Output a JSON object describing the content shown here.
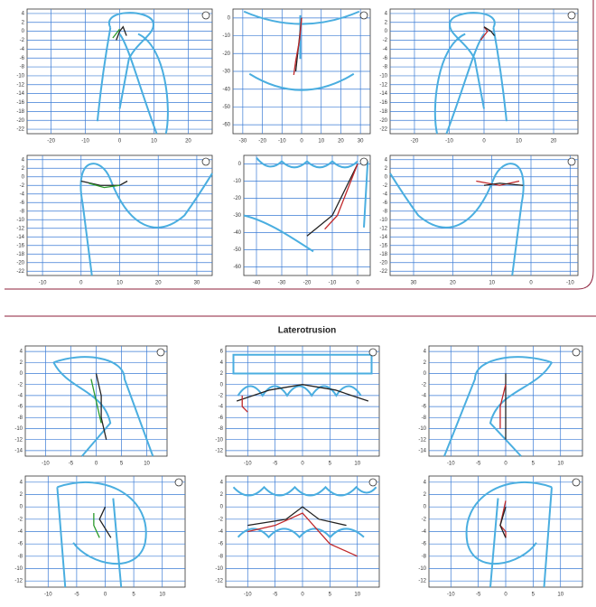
{
  "title": "Laterotrusion",
  "chart_data": [
    {
      "type": "line",
      "xlim": [
        -27,
        27
      ],
      "ylim": [
        -23,
        5
      ],
      "xticks": [
        -20,
        -10,
        0,
        10,
        20
      ],
      "yticks": [
        4,
        2,
        0,
        -2,
        -4,
        -6,
        -8,
        -10,
        -12,
        -14,
        -16,
        -18,
        -20,
        -22
      ],
      "series": [
        {
          "color": "#222222",
          "x": [
            -1,
            0,
            1,
            2
          ],
          "values": [
            -2,
            0,
            1,
            -1
          ]
        },
        {
          "color": "#2a9a2a",
          "x": [
            -2,
            -1,
            0
          ],
          "values": [
            -1.5,
            -0.5,
            0.5
          ]
        }
      ]
    },
    {
      "type": "line",
      "xlim": [
        -35,
        35
      ],
      "ylim": [
        -65,
        5
      ],
      "xticks": [
        -30,
        -20,
        -10,
        0,
        10,
        20,
        30
      ],
      "yticks": [
        0,
        -10,
        -20,
        -30,
        -40,
        -50,
        -60
      ],
      "series": [
        {
          "color": "#222222",
          "x": [
            0,
            -1,
            -2,
            -3
          ],
          "values": [
            0,
            -10,
            -20,
            -30
          ]
        },
        {
          "color": "#c0282a",
          "x": [
            0,
            -1,
            -3,
            -4
          ],
          "values": [
            0,
            -12,
            -24,
            -32
          ]
        }
      ]
    },
    {
      "type": "line",
      "xlim": [
        -27,
        27
      ],
      "ylim": [
        -23,
        5
      ],
      "xticks": [
        -20,
        -10,
        0,
        10,
        20
      ],
      "yticks": [
        4,
        2,
        0,
        -2,
        -4,
        -6,
        -8,
        -10,
        -12,
        -14,
        -16,
        -18,
        -20,
        -22
      ],
      "series": [
        {
          "color": "#c0282a",
          "x": [
            -1,
            1,
            0
          ],
          "values": [
            -2,
            0,
            1
          ]
        },
        {
          "color": "#222222",
          "x": [
            0,
            2,
            3
          ],
          "values": [
            1,
            0,
            -1
          ]
        }
      ]
    },
    {
      "type": "line",
      "xlim": [
        -14,
        34
      ],
      "ylim": [
        -23,
        5
      ],
      "xticks": [
        -10,
        0,
        10,
        20,
        30
      ],
      "yticks": [
        4,
        2,
        0,
        -2,
        -4,
        -6,
        -8,
        -10,
        -12,
        -14,
        -16,
        -18,
        -20,
        -22
      ],
      "series": [
        {
          "color": "#222222",
          "x": [
            0,
            5,
            10,
            12
          ],
          "values": [
            -1,
            -2,
            -2,
            -1
          ]
        },
        {
          "color": "#2a9a2a",
          "x": [
            2,
            6,
            10
          ],
          "values": [
            -1.5,
            -2.5,
            -2
          ]
        }
      ]
    },
    {
      "type": "line",
      "xlim": [
        -45,
        5
      ],
      "ylim": [
        -65,
        5
      ],
      "xticks": [
        -40,
        -30,
        -20,
        -10,
        0
      ],
      "yticks": [
        0,
        -10,
        -20,
        -30,
        -40,
        -50,
        -60
      ],
      "series": [
        {
          "color": "#222222",
          "x": [
            0,
            -5,
            -10,
            -20
          ],
          "values": [
            0,
            -15,
            -30,
            -42
          ]
        },
        {
          "color": "#c0282a",
          "x": [
            0,
            -4,
            -8,
            -13
          ],
          "values": [
            0,
            -15,
            -30,
            -38
          ]
        }
      ]
    },
    {
      "type": "line",
      "xlim": [
        36,
        -12
      ],
      "ylim": [
        -23,
        5
      ],
      "xticks": [
        30,
        20,
        10,
        0,
        -10
      ],
      "yticks": [
        4,
        2,
        0,
        -2,
        -4,
        -6,
        -8,
        -10,
        -12,
        -14,
        -16,
        -18,
        -20,
        -22
      ],
      "series": [
        {
          "color": "#c0282a",
          "x": [
            14,
            8,
            3
          ],
          "values": [
            -1,
            -2,
            -1
          ]
        },
        {
          "color": "#222222",
          "x": [
            12,
            8,
            2
          ],
          "values": [
            -2,
            -1.5,
            -2
          ]
        }
      ]
    },
    {
      "type": "line",
      "xlim": [
        -14,
        14
      ],
      "ylim": [
        -15,
        5
      ],
      "xticks": [
        -10,
        -5,
        0,
        5,
        10
      ],
      "yticks": [
        4,
        2,
        0,
        -2,
        -4,
        -6,
        -8,
        -10,
        -12,
        -14
      ],
      "series": [
        {
          "color": "#222222",
          "x": [
            0,
            1,
            1,
            2
          ],
          "values": [
            0,
            -4,
            -8,
            -12
          ]
        },
        {
          "color": "#2a9a2a",
          "x": [
            -1,
            0,
            1
          ],
          "values": [
            -1,
            -5,
            -9
          ]
        }
      ]
    },
    {
      "type": "line",
      "xlim": [
        -14,
        14
      ],
      "ylim": [
        -13,
        7
      ],
      "xticks": [
        -10,
        -5,
        0,
        5,
        10
      ],
      "yticks": [
        6,
        4,
        2,
        0,
        -2,
        -4,
        -6,
        -8,
        -10,
        -12
      ],
      "series": [
        {
          "color": "#222222",
          "x": [
            -12,
            -6,
            0,
            6,
            12
          ],
          "values": [
            -3,
            -1,
            0,
            -1,
            -3
          ]
        },
        {
          "color": "#c0282a",
          "x": [
            -11,
            -11,
            -10
          ],
          "values": [
            -2,
            -4,
            -5
          ]
        }
      ]
    },
    {
      "type": "line",
      "xlim": [
        -14,
        14
      ],
      "ylim": [
        -15,
        5
      ],
      "xticks": [
        -10,
        -5,
        0,
        5,
        10
      ],
      "yticks": [
        4,
        2,
        0,
        -2,
        -4,
        -6,
        -8,
        -10,
        -12,
        -14
      ],
      "series": [
        {
          "color": "#222222",
          "x": [
            0,
            0,
            0
          ],
          "values": [
            0,
            -6,
            -12
          ]
        },
        {
          "color": "#c0282a",
          "x": [
            0,
            -1,
            -1
          ],
          "values": [
            -2,
            -6,
            -10
          ]
        }
      ]
    },
    {
      "type": "line",
      "xlim": [
        -14,
        14
      ],
      "ylim": [
        -13,
        5
      ],
      "xticks": [
        -10,
        -5,
        0,
        5,
        10
      ],
      "yticks": [
        4,
        2,
        0,
        -2,
        -4,
        -6,
        -8,
        -10,
        -12
      ],
      "series": [
        {
          "color": "#222222",
          "x": [
            0,
            -1,
            1
          ],
          "values": [
            0,
            -2,
            -5
          ]
        },
        {
          "color": "#2a9a2a",
          "x": [
            -2,
            -2,
            -1
          ],
          "values": [
            -1,
            -3,
            -5
          ]
        }
      ]
    },
    {
      "type": "line",
      "xlim": [
        -14,
        14
      ],
      "ylim": [
        -13,
        5
      ],
      "xticks": [
        -10,
        -5,
        0,
        5,
        10
      ],
      "yticks": [
        4,
        2,
        0,
        -2,
        -4,
        -6,
        -8,
        -10,
        -12
      ],
      "series": [
        {
          "color": "#222222",
          "x": [
            -10,
            -3,
            0,
            3,
            8
          ],
          "values": [
            -3,
            -2,
            0,
            -2,
            -3
          ]
        },
        {
          "color": "#c0282a",
          "x": [
            -10,
            -5,
            0,
            5,
            10
          ],
          "values": [
            -4,
            -3,
            -1,
            -6,
            -8
          ]
        }
      ]
    },
    {
      "type": "line",
      "xlim": [
        -14,
        14
      ],
      "ylim": [
        -13,
        5
      ],
      "xticks": [
        -10,
        -5,
        0,
        5,
        10
      ],
      "yticks": [
        4,
        2,
        0,
        -2,
        -4,
        -6,
        -8,
        -10,
        -12
      ],
      "series": [
        {
          "color": "#c0282a",
          "x": [
            0,
            -1,
            0,
            0
          ],
          "values": [
            1,
            -3,
            -4,
            -5
          ]
        },
        {
          "color": "#222222",
          "x": [
            0,
            -1,
            0
          ],
          "values": [
            0,
            -3,
            -5
          ]
        }
      ]
    }
  ]
}
